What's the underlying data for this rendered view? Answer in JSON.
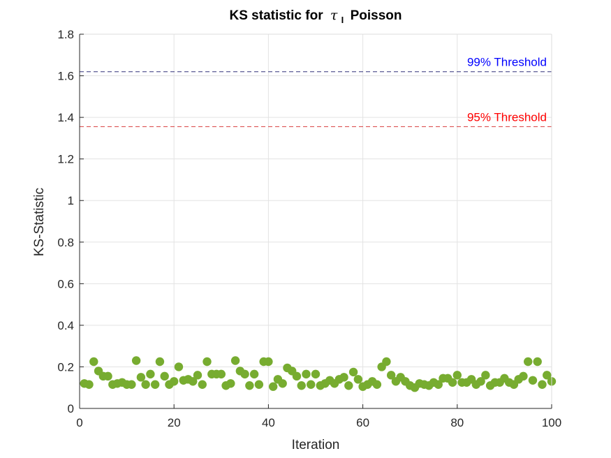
{
  "chart_data": {
    "type": "scatter",
    "title": "KS statistic for",
    "title_symbol": "τ",
    "title_subscript": "I",
    "title_suffix": "Poisson",
    "xlabel": "Iteration",
    "ylabel": "KS-Statistic",
    "xlim": [
      0,
      100
    ],
    "ylim": [
      0,
      1.8
    ],
    "x_ticks": [
      0,
      20,
      40,
      60,
      80,
      100
    ],
    "x_tick_labels": [
      "0",
      "20",
      "40",
      "60",
      "80",
      "100"
    ],
    "y_ticks": [
      0,
      0.2,
      0.4,
      0.6,
      0.8,
      1,
      1.2,
      1.4,
      1.6,
      1.8
    ],
    "y_tick_labels": [
      "0",
      "0.2",
      "0.4",
      "0.6",
      "0.8",
      "1",
      "1.2",
      "1.4",
      "1.6",
      "1.8"
    ],
    "grid": true,
    "marker_color": "#77AC30",
    "thresholds": [
      {
        "label": "99% Threshold",
        "value": 1.6196,
        "color": "#0000FF",
        "line_color": "#31317A"
      },
      {
        "label": "95% Threshold",
        "value": 1.3553,
        "color": "#FF0000",
        "line_color": "#D83C3C"
      }
    ],
    "x": [
      1,
      2,
      3,
      4,
      5,
      6,
      7,
      8,
      9,
      10,
      11,
      12,
      13,
      14,
      15,
      16,
      17,
      18,
      19,
      20,
      21,
      22,
      23,
      24,
      25,
      26,
      27,
      28,
      29,
      30,
      31,
      32,
      33,
      34,
      35,
      36,
      37,
      38,
      39,
      40,
      41,
      42,
      43,
      44,
      45,
      46,
      47,
      48,
      49,
      50,
      51,
      52,
      53,
      54,
      55,
      56,
      57,
      58,
      59,
      60,
      61,
      62,
      63,
      64,
      65,
      66,
      67,
      68,
      69,
      70,
      71,
      72,
      73,
      74,
      75,
      76,
      77,
      78,
      79,
      80,
      81,
      82,
      83,
      84,
      85,
      86,
      87,
      88,
      89,
      90,
      91,
      92,
      93,
      94,
      95,
      96,
      97,
      98,
      99,
      100
    ],
    "values": [
      0.12,
      0.115,
      0.225,
      0.18,
      0.155,
      0.155,
      0.115,
      0.12,
      0.125,
      0.115,
      0.115,
      0.23,
      0.15,
      0.115,
      0.165,
      0.115,
      0.225,
      0.155,
      0.115,
      0.13,
      0.2,
      0.135,
      0.14,
      0.13,
      0.16,
      0.115,
      0.225,
      0.165,
      0.165,
      0.165,
      0.11,
      0.12,
      0.23,
      0.18,
      0.165,
      0.11,
      0.165,
      0.115,
      0.225,
      0.225,
      0.105,
      0.14,
      0.12,
      0.195,
      0.18,
      0.155,
      0.11,
      0.165,
      0.115,
      0.165,
      0.11,
      0.12,
      0.135,
      0.12,
      0.14,
      0.15,
      0.11,
      0.175,
      0.14,
      0.105,
      0.115,
      0.13,
      0.115,
      0.2,
      0.225,
      0.16,
      0.13,
      0.15,
      0.13,
      0.11,
      0.1,
      0.12,
      0.115,
      0.11,
      0.125,
      0.115,
      0.145,
      0.145,
      0.125,
      0.16,
      0.125,
      0.125,
      0.14,
      0.115,
      0.13,
      0.16,
      0.11,
      0.125,
      0.125,
      0.145,
      0.125,
      0.115,
      0.14,
      0.155,
      0.225,
      0.135,
      0.225,
      0.115,
      0.16,
      0.13
    ]
  }
}
